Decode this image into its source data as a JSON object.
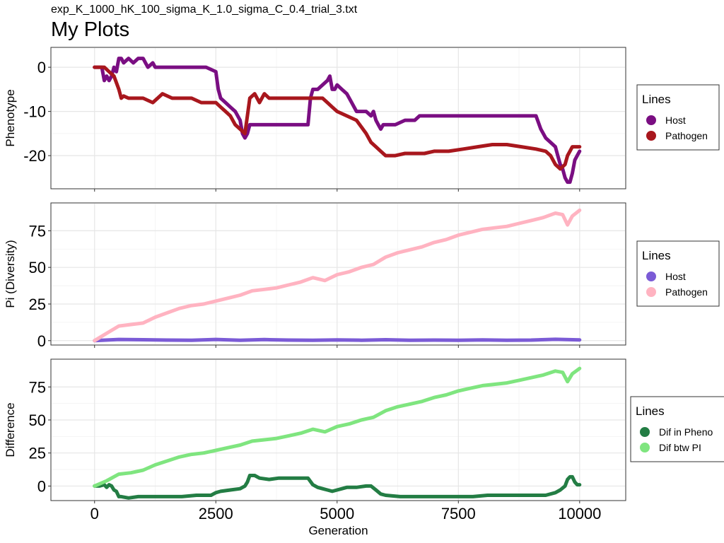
{
  "file_label": "exp_K_1000_hK_100_sigma_K_1.0_sigma_C_0.4_trial_3.txt",
  "title": "My Plots",
  "chart_data": [
    {
      "type": "line",
      "ylabel": "Phenotype",
      "xlabel": "",
      "xlim": [
        -900,
        10950
      ],
      "ylim": [
        -27.5,
        4.5
      ],
      "x_ticks": [
        0,
        2500,
        5000,
        7500,
        10000
      ],
      "y_ticks": [
        0,
        -10,
        -20
      ],
      "y_tick_labels": [
        "0",
        "-10",
        "-20"
      ],
      "grid": true,
      "legend": {
        "title": "Lines",
        "placement": "right"
      },
      "series": [
        {
          "name": "Host",
          "color": "#7a0e82",
          "x": [
            0,
            150,
            200,
            250,
            300,
            350,
            400,
            450,
            500,
            550,
            600,
            700,
            800,
            900,
            1000,
            1050,
            1100,
            1200,
            1250,
            1300,
            1500,
            1800,
            2100,
            2300,
            2500,
            2550,
            2600,
            2700,
            2800,
            2900,
            3000,
            3050,
            3100,
            3150,
            3200,
            3300,
            3500,
            3800,
            4000,
            4200,
            4300,
            4400,
            4450,
            4500,
            4600,
            4700,
            4800,
            4850,
            4900,
            4950,
            5000,
            5100,
            5200,
            5300,
            5400,
            5500,
            5600,
            5700,
            5750,
            5800,
            5850,
            5900,
            5950,
            6000,
            6200,
            6400,
            6600,
            6700,
            6800,
            7000,
            7300,
            7600,
            7900,
            8200,
            8500,
            8800,
            9100,
            9200,
            9300,
            9400,
            9500,
            9550,
            9600,
            9650,
            9700,
            9750,
            9800,
            9850,
            9900,
            9950,
            10000
          ],
          "y": [
            0,
            0,
            -3,
            -2,
            -3,
            -2,
            0,
            -1,
            2,
            2,
            1,
            2,
            1,
            2,
            2,
            1,
            0,
            1,
            0,
            0,
            0,
            0,
            0,
            0,
            -1,
            -5,
            -7,
            -8,
            -9,
            -10,
            -12,
            -15,
            -16,
            -15,
            -13,
            -13,
            -13,
            -13,
            -13,
            -13,
            -13,
            -13,
            -7,
            -5,
            -5,
            -4,
            -3,
            -2,
            -5,
            -5,
            -4,
            -5,
            -6,
            -8,
            -10,
            -10,
            -10,
            -11,
            -10,
            -12,
            -13,
            -14,
            -13,
            -13,
            -13,
            -12,
            -12,
            -11,
            -11,
            -11,
            -11,
            -11,
            -11,
            -11,
            -11,
            -11,
            -11,
            -14,
            -16,
            -17,
            -18,
            -20,
            -22,
            -23,
            -25,
            -26,
            -26,
            -24,
            -21,
            -20,
            -19
          ]
        },
        {
          "name": "Pathogen",
          "color": "#a8171d",
          "x": [
            0,
            100,
            200,
            300,
            400,
            500,
            550,
            600,
            700,
            800,
            1000,
            1200,
            1400,
            1600,
            1800,
            2000,
            2200,
            2500,
            2600,
            2700,
            2800,
            2900,
            3000,
            3100,
            3150,
            3200,
            3300,
            3400,
            3500,
            3600,
            3800,
            4000,
            4200,
            4300,
            4500,
            4700,
            4800,
            4900,
            5000,
            5200,
            5400,
            5600,
            5700,
            5800,
            5900,
            6000,
            6100,
            6200,
            6400,
            6600,
            6800,
            7000,
            7300,
            7600,
            7900,
            8200,
            8500,
            8800,
            9100,
            9300,
            9400,
            9500,
            9600,
            9700,
            9750,
            9800,
            9850,
            9900,
            9950,
            10000
          ],
          "y": [
            0,
            0,
            0,
            -1,
            -2,
            -5,
            -7,
            -6.5,
            -7,
            -7,
            -7,
            -8,
            -6,
            -7,
            -7,
            -7,
            -8,
            -8,
            -9,
            -10,
            -11,
            -13,
            -14,
            -15,
            -11,
            -7,
            -6,
            -8,
            -6,
            -7,
            -7,
            -7,
            -7,
            -7,
            -7,
            -7,
            -8,
            -9,
            -10,
            -11,
            -12,
            -15,
            -17,
            -18,
            -19,
            -20,
            -20,
            -20,
            -19.5,
            -19.5,
            -19.5,
            -19,
            -19,
            -18.5,
            -18,
            -17.5,
            -17.5,
            -18,
            -18.5,
            -19,
            -20,
            -22,
            -23,
            -22,
            -20,
            -19,
            -18,
            -18,
            -18,
            -18
          ]
        }
      ]
    },
    {
      "type": "line",
      "ylabel": "Pi (Diversity)",
      "xlabel": "",
      "xlim": [
        -900,
        10950
      ],
      "ylim": [
        -3,
        94
      ],
      "x_ticks": [
        0,
        2500,
        5000,
        7500,
        10000
      ],
      "y_ticks": [
        0,
        25,
        50,
        75
      ],
      "y_tick_labels": [
        "0",
        "25",
        "50",
        "75"
      ],
      "grid": true,
      "legend": {
        "title": "Lines",
        "placement": "right"
      },
      "series": [
        {
          "name": "Host",
          "color": "#7b5bd6",
          "x": [
            0,
            500,
            1000,
            1500,
            2000,
            2500,
            3000,
            3500,
            4000,
            4500,
            5000,
            5500,
            6000,
            6500,
            7000,
            7500,
            8000,
            8500,
            9000,
            9500,
            10000
          ],
          "y": [
            0,
            0.8,
            0.6,
            0.4,
            0.3,
            0.8,
            0.3,
            0.7,
            0.4,
            0.3,
            0.5,
            0.3,
            0.6,
            0.3,
            0.4,
            0.3,
            0.5,
            0.3,
            0.4,
            0.9,
            0.5
          ]
        },
        {
          "name": "Pathogen",
          "color": "#ffb3c1",
          "x": [
            0,
            250,
            500,
            750,
            1000,
            1250,
            1500,
            1750,
            2000,
            2250,
            2500,
            2750,
            3000,
            3250,
            3500,
            3750,
            4000,
            4250,
            4500,
            4750,
            5000,
            5250,
            5500,
            5750,
            6000,
            6250,
            6500,
            6750,
            7000,
            7250,
            7500,
            7750,
            8000,
            8250,
            8500,
            8750,
            9000,
            9250,
            9500,
            9650,
            9750,
            9850,
            10000
          ],
          "y": [
            0,
            5,
            10,
            11,
            12,
            16,
            19,
            22,
            24,
            25,
            27,
            29,
            31,
            34,
            35,
            36,
            38,
            40,
            43,
            41,
            45,
            47,
            50,
            52,
            57,
            60,
            62,
            64,
            67,
            69,
            72,
            74,
            76,
            77,
            78,
            80,
            82,
            84,
            87,
            86,
            79,
            85,
            89
          ]
        }
      ]
    },
    {
      "type": "line",
      "ylabel": "Difference",
      "xlabel": "Generation",
      "xlim": [
        -900,
        10950
      ],
      "ylim": [
        -11,
        96
      ],
      "x_ticks": [
        0,
        2500,
        5000,
        7500,
        10000
      ],
      "x_tick_labels": [
        "0",
        "2500",
        "5000",
        "7500",
        "10000"
      ],
      "y_ticks": [
        0,
        25,
        50,
        75
      ],
      "y_tick_labels": [
        "0",
        "25",
        "50",
        "75"
      ],
      "grid": true,
      "legend": {
        "title": "Lines",
        "placement": "right"
      },
      "series": [
        {
          "name": "Dif in Pheno",
          "color": "#237d44",
          "x": [
            0,
            100,
            200,
            250,
            300,
            350,
            400,
            450,
            500,
            550,
            700,
            900,
            1100,
            1300,
            1500,
            1800,
            2100,
            2400,
            2500,
            2600,
            2800,
            3000,
            3100,
            3150,
            3200,
            3300,
            3400,
            3600,
            3800,
            4000,
            4200,
            4400,
            4500,
            4600,
            4700,
            4800,
            4900,
            5000,
            5100,
            5200,
            5400,
            5600,
            5700,
            5800,
            5900,
            6000,
            6300,
            6600,
            6900,
            7200,
            7500,
            7800,
            8100,
            8400,
            8700,
            9000,
            9300,
            9500,
            9600,
            9700,
            9750,
            9800,
            9850,
            9900,
            9950,
            10000
          ],
          "y": [
            0,
            0,
            1,
            -1,
            1,
            0,
            -3,
            -4,
            -8,
            -8,
            -9,
            -8,
            -8,
            -8,
            -8,
            -8,
            -7,
            -7,
            -5,
            -4,
            -3,
            -2,
            0,
            3,
            8,
            8,
            6,
            5,
            6,
            6,
            6,
            6,
            1,
            -1,
            -2,
            -3,
            -4,
            -3,
            -2,
            -1,
            -1,
            0,
            0,
            -3,
            -6,
            -7,
            -8,
            -8,
            -8,
            -8,
            -8,
            -8,
            -7,
            -7,
            -7,
            -7,
            -7,
            -5,
            -3,
            0,
            5,
            7,
            7,
            3,
            1,
            1
          ]
        },
        {
          "name": "Dif btw PI",
          "color": "#7fe57f",
          "x": [
            0,
            250,
            500,
            750,
            1000,
            1250,
            1500,
            1750,
            2000,
            2250,
            2500,
            2750,
            3000,
            3250,
            3500,
            3750,
            4000,
            4250,
            4500,
            4750,
            5000,
            5250,
            5500,
            5750,
            6000,
            6250,
            6500,
            6750,
            7000,
            7250,
            7500,
            7750,
            8000,
            8250,
            8500,
            8750,
            9000,
            9250,
            9500,
            9650,
            9750,
            9850,
            10000
          ],
          "y": [
            0,
            4,
            9,
            10,
            12,
            16,
            19,
            22,
            24,
            25,
            27,
            29,
            31,
            34,
            35,
            36,
            38,
            40,
            43,
            41,
            45,
            47,
            50,
            52,
            57,
            60,
            62,
            64,
            67,
            69,
            72,
            74,
            76,
            77,
            78,
            80,
            82,
            84,
            87,
            86,
            79,
            85,
            89
          ]
        }
      ]
    }
  ]
}
